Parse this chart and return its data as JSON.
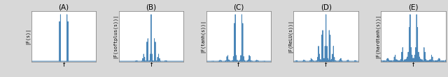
{
  "panels": [
    "(A)",
    "(B)",
    "(C)",
    "(D)",
    "(E)"
  ],
  "ylabels": [
    "|F(s)|",
    "|F(softplus(s))|",
    "|F(tanh(s))|",
    "|F(ReLU(s))|",
    "|F(hardtanh(s))|"
  ],
  "xlabel": "f",
  "line_color": "#4a86b8",
  "bg_color": "#d8d8d8",
  "plot_bg_color": "#ffffff",
  "figsize": [
    6.4,
    1.11
  ],
  "dpi": 100,
  "flim": 10
}
